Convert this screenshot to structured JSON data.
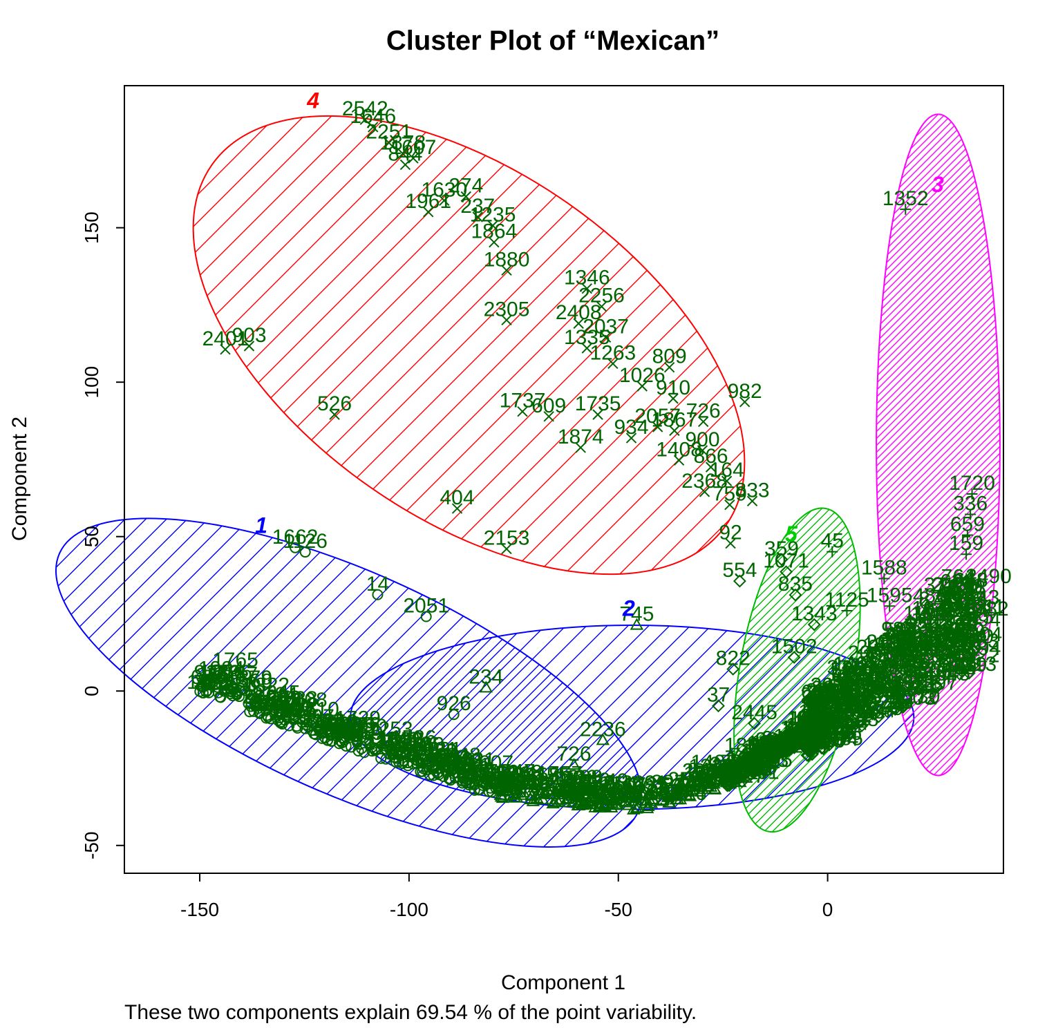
{
  "chart_data": {
    "type": "scatter",
    "title": "Cluster Plot of “Mexican”",
    "xlabel": "Component 1",
    "ylabel": "Component 2",
    "subtitle": "These two components explain 69.54 % of the point variability.",
    "xlim": [
      -168,
      42
    ],
    "ylim": [
      -59,
      196
    ],
    "x_ticks": [
      -150,
      -100,
      -50,
      0
    ],
    "y_ticks": [
      -50,
      0,
      50,
      100,
      150
    ],
    "point_color": "#006400",
    "clusters": [
      {
        "label": "1",
        "color": "#0000ff",
        "label_color": "#0000ff",
        "marker": "circle",
        "ellipse": {
          "cx": -114.4,
          "cy": 2.7,
          "a": 75.7,
          "b": 35.9,
          "angle_deg": -24.1
        },
        "hatch": {
          "spacing": 30,
          "angle": 45
        }
      },
      {
        "label": "2",
        "color": "#0000ff",
        "label_color": "#0000ff",
        "marker": "triangle",
        "ellipse": {
          "cx": -46.7,
          "cy": -8.5,
          "a": 67.3,
          "b": 29.8,
          "angle_deg": 0
        },
        "hatch": {
          "spacing": 30,
          "angle": 45
        }
      },
      {
        "label": "3",
        "color": "#ff00ff",
        "label_color": "#ff00ff",
        "marker": "plus",
        "ellipse": {
          "cx": 26.4,
          "cy": 79.7,
          "a": 79.0,
          "b": 20.0,
          "angle_deg": 90
        },
        "hatch": {
          "spacing": 10,
          "angle": 45
        }
      },
      {
        "label": "4",
        "color": "#ff0000",
        "label_color": "#ff0000",
        "marker": "x",
        "ellipse": {
          "cx": -85.7,
          "cy": 112.0,
          "a": 75.0,
          "b": 56.0,
          "angle_deg": -35
        },
        "hatch": {
          "spacing": 40,
          "angle": 45
        }
      },
      {
        "label": "5",
        "color": "#00bb00",
        "label_color": "#00cc00",
        "marker": "diamond",
        "ellipse": {
          "cx": -7.3,
          "cy": 6.8,
          "a": 39.2,
          "b": 18.5,
          "angle_deg": 80
        },
        "hatch": {
          "spacing": 12,
          "angle": 45
        }
      }
    ],
    "cluster_label_positions": [
      {
        "label": "1",
        "x": -135.3,
        "y": 51.2
      },
      {
        "label": "2",
        "x": -47.5,
        "y": 24.3
      },
      {
        "label": "3",
        "x": 26.3,
        "y": 161.5
      },
      {
        "label": "4",
        "x": -122.9,
        "y": 188.7
      },
      {
        "label": "5",
        "x": -8.7,
        "y": 48.4
      }
    ],
    "labeled_points": [
      {
        "c": 4,
        "x": -110.5,
        "y": 185.0,
        "label": "2542"
      },
      {
        "c": 4,
        "x": -108.6,
        "y": 182.6,
        "label": "1646"
      },
      {
        "c": 4,
        "x": -104.8,
        "y": 177.5,
        "label": "2251"
      },
      {
        "c": 4,
        "x": -101.5,
        "y": 174.0,
        "label": "1878"
      },
      {
        "c": 4,
        "x": -99.0,
        "y": 172.5,
        "label": "1607"
      },
      {
        "c": 4,
        "x": -100.9,
        "y": 170.4,
        "label": "844"
      },
      {
        "c": 4,
        "x": -86.4,
        "y": 160.1,
        "label": "274"
      },
      {
        "c": 4,
        "x": -91.6,
        "y": 158.8,
        "label": "1630"
      },
      {
        "c": 4,
        "x": -95.4,
        "y": 155.1,
        "label": "1961"
      },
      {
        "c": 4,
        "x": -83.6,
        "y": 153.5,
        "label": "237"
      },
      {
        "c": 4,
        "x": -80.0,
        "y": 150.7,
        "label": "1235"
      },
      {
        "c": 4,
        "x": -79.7,
        "y": 145.3,
        "label": "1864"
      },
      {
        "c": 4,
        "x": -76.7,
        "y": 136.2,
        "label": "1880"
      },
      {
        "c": 4,
        "x": -57.5,
        "y": 130.3,
        "label": "1346"
      },
      {
        "c": 4,
        "x": -54.0,
        "y": 124.5,
        "label": "2256"
      },
      {
        "c": 4,
        "x": -76.7,
        "y": 120.1,
        "label": "2305"
      },
      {
        "c": 4,
        "x": -59.5,
        "y": 119.0,
        "label": "2408"
      },
      {
        "c": 4,
        "x": -53.0,
        "y": 114.5,
        "label": "2037"
      },
      {
        "c": 4,
        "x": -57.5,
        "y": 111.0,
        "label": "1335"
      },
      {
        "c": 4,
        "x": -51.3,
        "y": 106.0,
        "label": "1263"
      },
      {
        "c": 4,
        "x": -37.8,
        "y": 104.8,
        "label": "809"
      },
      {
        "c": 4,
        "x": -44.3,
        "y": 98.7,
        "label": "1026"
      },
      {
        "c": 4,
        "x": -36.9,
        "y": 94.7,
        "label": "910"
      },
      {
        "c": 4,
        "x": -143.9,
        "y": 110.6,
        "label": "2401"
      },
      {
        "c": 4,
        "x": -138.2,
        "y": 111.7,
        "label": "903"
      },
      {
        "c": 4,
        "x": -117.8,
        "y": 89.5,
        "label": "526"
      },
      {
        "c": 4,
        "x": -72.9,
        "y": 90.5,
        "label": "1737"
      },
      {
        "c": 4,
        "x": -66.6,
        "y": 88.9,
        "label": "609"
      },
      {
        "c": 4,
        "x": -54.9,
        "y": 89.5,
        "label": "1735"
      },
      {
        "c": 4,
        "x": -59.0,
        "y": 78.8,
        "label": "1874"
      },
      {
        "c": 4,
        "x": -46.9,
        "y": 81.9,
        "label": "934"
      },
      {
        "c": 4,
        "x": -40.6,
        "y": 85.5,
        "label": "2057"
      },
      {
        "c": 4,
        "x": -36.6,
        "y": 84.3,
        "label": "1867"
      },
      {
        "c": 4,
        "x": -29.7,
        "y": 87.2,
        "label": "726"
      },
      {
        "c": 4,
        "x": -29.9,
        "y": 77.9,
        "label": "900"
      },
      {
        "c": 4,
        "x": -35.5,
        "y": 74.7,
        "label": "1408"
      },
      {
        "c": 4,
        "x": -27.9,
        "y": 72.5,
        "label": "866"
      },
      {
        "c": 4,
        "x": -19.8,
        "y": 93.6,
        "label": "982"
      },
      {
        "c": 4,
        "x": -24.1,
        "y": 68.0,
        "label": "164"
      },
      {
        "c": 4,
        "x": -29.4,
        "y": 64.5,
        "label": "2368"
      },
      {
        "c": 4,
        "x": -23.4,
        "y": 60.3,
        "label": "759"
      },
      {
        "c": 4,
        "x": -18.0,
        "y": 61.5,
        "label": "833"
      },
      {
        "c": 4,
        "x": -88.5,
        "y": 59.1,
        "label": "404"
      },
      {
        "c": 4,
        "x": -76.7,
        "y": 46.0,
        "label": "2153"
      },
      {
        "c": 4,
        "x": -23.2,
        "y": 47.8,
        "label": "92"
      },
      {
        "c": 1,
        "x": -127.2,
        "y": 46.4,
        "label": "1662"
      },
      {
        "c": 1,
        "x": -124.8,
        "y": 45.0,
        "label": "1126"
      },
      {
        "c": 1,
        "x": -107.5,
        "y": 31.2,
        "label": "14"
      },
      {
        "c": 1,
        "x": -95.9,
        "y": 24.1,
        "label": "2051"
      },
      {
        "c": 1,
        "x": -89.3,
        "y": -7.6,
        "label": "926"
      },
      {
        "c": 1,
        "x": -141.5,
        "y": 6.5,
        "label": "1765"
      },
      {
        "c": 2,
        "x": -45.6,
        "y": 21.4,
        "label": "745"
      },
      {
        "c": 2,
        "x": -81.6,
        "y": 1.1,
        "label": "234"
      },
      {
        "c": 2,
        "x": -53.7,
        "y": -15.9,
        "label": "2236"
      },
      {
        "c": 2,
        "x": -60.6,
        "y": -23.9,
        "label": "726"
      },
      {
        "c": 5,
        "x": -21.0,
        "y": 35.6,
        "label": "554"
      },
      {
        "c": 5,
        "x": -9.9,
        "y": 38.6,
        "label": "1071"
      },
      {
        "c": 5,
        "x": -11.0,
        "y": 42.6,
        "label": "359"
      },
      {
        "c": 5,
        "x": -7.7,
        "y": 31.1,
        "label": "835"
      },
      {
        "c": 5,
        "x": -3.2,
        "y": 21.5,
        "label": "1343"
      },
      {
        "c": 5,
        "x": -8.0,
        "y": 10.9,
        "label": "1502"
      },
      {
        "c": 5,
        "x": -22.6,
        "y": 7.1,
        "label": "822"
      },
      {
        "c": 5,
        "x": -26.1,
        "y": -4.8,
        "label": "37"
      },
      {
        "c": 5,
        "x": -17.5,
        "y": -10.5,
        "label": "2445"
      },
      {
        "c": 5,
        "x": -19.2,
        "y": -21.1,
        "label": "1863"
      },
      {
        "c": 5,
        "x": -27.2,
        "y": -26.6,
        "label": "1407"
      },
      {
        "c": 3,
        "x": 18.6,
        "y": 156.0,
        "label": "1352"
      },
      {
        "c": 3,
        "x": 1.1,
        "y": 45.1,
        "label": "45"
      },
      {
        "c": 3,
        "x": 13.5,
        "y": 36.4,
        "label": "1588"
      },
      {
        "c": 3,
        "x": 34.5,
        "y": 63.8,
        "label": "1720"
      },
      {
        "c": 3,
        "x": 34.1,
        "y": 57.2,
        "label": "336"
      },
      {
        "c": 3,
        "x": 33.4,
        "y": 50.5,
        "label": "659"
      },
      {
        "c": 3,
        "x": 33.1,
        "y": 44.3,
        "label": "159"
      },
      {
        "c": 3,
        "x": 27.1,
        "y": 30.8,
        "label": "374"
      },
      {
        "c": 3,
        "x": 4.6,
        "y": 26.0,
        "label": "1125"
      },
      {
        "c": 3,
        "x": 14.8,
        "y": 27.5,
        "label": "1595"
      }
    ],
    "point_cloud_groups": [
      {
        "c": 1,
        "n": 260,
        "x_range": [
          -150,
          -79
        ],
        "curve": "arc1",
        "labeled": 0.35
      },
      {
        "c": 2,
        "n": 240,
        "x_range": [
          -79,
          -20
        ],
        "curve": "arc2",
        "labeled": 0.3
      },
      {
        "c": 5,
        "n": 200,
        "x_range": [
          -25,
          0
        ],
        "curve": "arc3",
        "labeled": 0.3
      },
      {
        "c": 3,
        "n": 520,
        "x_range": [
          -8,
          35
        ],
        "curve": "arc4",
        "labeled": 0.25
      }
    ]
  }
}
